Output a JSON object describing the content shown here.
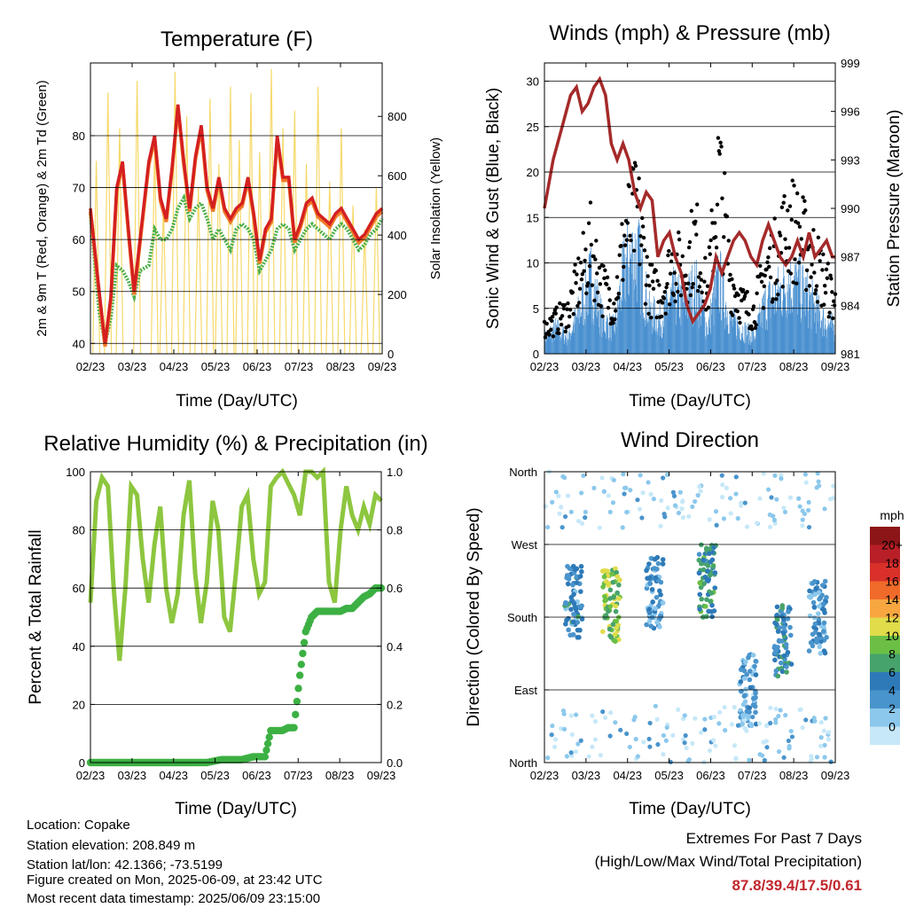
{
  "x_ticks": [
    "02/23",
    "03/23",
    "04/23",
    "05/23",
    "06/23",
    "07/23",
    "08/23",
    "09/23"
  ],
  "chart_data": [
    {
      "type": "line",
      "title": "Temperature (F)",
      "xlabel": "Time (Day/UTC)",
      "ylabel": "2m & 9m T (Red, Orange) & 2m Td (Green)",
      "y2label": "Solar Insolation (Yellow)",
      "ylim": [
        38,
        94
      ],
      "y_ticks": [
        40,
        50,
        60,
        70,
        80
      ],
      "y2lim": [
        0,
        980
      ],
      "y2_ticks": [
        0,
        200,
        400,
        600,
        800
      ],
      "colors": {
        "temp_2m": "#d42020",
        "temp_9m": "#f07a28",
        "dewpoint": "#4caf4a",
        "solar": "#f6d96a"
      },
      "series": [
        {
          "name": "2m T",
          "x": [
            0,
            3,
            5,
            7,
            9,
            11,
            13,
            15,
            17,
            20,
            22,
            24,
            26,
            28,
            30,
            32,
            34,
            36,
            38,
            40,
            42,
            44,
            46,
            48,
            50,
            52,
            54,
            56,
            58,
            60,
            62,
            64,
            66,
            68,
            70,
            72,
            74,
            76,
            78,
            80,
            82,
            84,
            86,
            88,
            90,
            92,
            94,
            96,
            98,
            100
          ],
          "values": [
            66,
            50,
            40,
            49,
            70,
            75,
            62,
            50,
            60,
            75,
            80,
            68,
            64,
            74,
            86,
            75,
            66,
            76,
            82,
            70,
            66,
            72,
            66,
            64,
            66,
            67,
            72,
            65,
            56,
            62,
            64,
            80,
            72,
            72,
            60,
            63,
            67,
            68,
            65,
            64,
            63,
            65,
            66,
            64,
            62,
            60,
            61,
            63,
            65,
            66
          ]
        },
        {
          "name": "Td",
          "x": [
            0,
            3,
            5,
            7,
            9,
            11,
            13,
            15,
            17,
            20,
            22,
            24,
            26,
            28,
            30,
            32,
            34,
            36,
            38,
            40,
            42,
            44,
            46,
            48,
            50,
            52,
            54,
            56,
            58,
            60,
            62,
            64,
            66,
            68,
            70,
            72,
            74,
            76,
            78,
            80,
            82,
            84,
            86,
            88,
            90,
            92,
            94,
            96,
            98,
            100
          ],
          "values": [
            65,
            46,
            40,
            45,
            55,
            54,
            52,
            49,
            54,
            55,
            62,
            60,
            60,
            62,
            66,
            68,
            64,
            66,
            67,
            64,
            60,
            62,
            60,
            58,
            62,
            63,
            62,
            60,
            54,
            56,
            58,
            62,
            63,
            62,
            58,
            60,
            62,
            63,
            62,
            61,
            60,
            62,
            63,
            62,
            60,
            58,
            59,
            61,
            62,
            64
          ]
        },
        {
          "name": "Solar",
          "x": [
            2,
            6,
            10,
            16,
            22,
            25,
            29,
            33,
            37,
            41,
            44,
            48,
            51,
            55,
            58,
            62,
            66,
            70,
            74,
            78,
            82,
            86,
            90,
            94,
            98
          ],
          "values": [
            650,
            880,
            760,
            920,
            700,
            500,
            950,
            800,
            560,
            860,
            640,
            900,
            720,
            880,
            680,
            960,
            760,
            820,
            640,
            900,
            580,
            760,
            500,
            420,
            560
          ]
        }
      ]
    },
    {
      "type": "line",
      "title": "Winds (mph) & Pressure (mb)",
      "xlabel": "Time (Day/UTC)",
      "ylabel": "Sonic Wind & Gust (Blue, Black)",
      "y2label": "Station Pressure (Maroon)",
      "ylim": [
        0,
        32
      ],
      "y_ticks": [
        0,
        5,
        10,
        15,
        20,
        25,
        30
      ],
      "y2lim": [
        981,
        999
      ],
      "y2_ticks": [
        981,
        984,
        987,
        990,
        993,
        996,
        999
      ],
      "colors": {
        "wind": "#4a90d0",
        "gust": "#000000",
        "pressure": "#a52a2a"
      },
      "series": [
        {
          "name": "Pressure",
          "x": [
            0,
            3,
            6,
            9,
            11,
            13,
            15,
            17,
            19,
            21,
            23,
            25,
            27,
            29,
            31,
            33,
            35,
            37,
            39,
            41,
            43,
            45,
            47,
            49,
            51,
            53,
            55,
            57,
            59,
            61,
            63,
            65,
            67,
            69,
            71,
            73,
            75,
            77,
            79,
            81,
            83,
            85,
            87,
            89,
            91,
            93,
            95,
            97,
            99,
            100
          ],
          "values": [
            990,
            993,
            995,
            997,
            997.5,
            996,
            996.5,
            997.5,
            998,
            997,
            994,
            993,
            994,
            993,
            991,
            990,
            991,
            990.5,
            987,
            988,
            988.5,
            987,
            986,
            984,
            983,
            983.5,
            984,
            985,
            987,
            986,
            987,
            988,
            988.5,
            988,
            987,
            986.5,
            988,
            989,
            988,
            987,
            986.5,
            987,
            988,
            987,
            988.5,
            987,
            987.5,
            988,
            987,
            987
          ]
        },
        {
          "name": "Wind",
          "x": [
            0,
            4,
            8,
            12,
            16,
            20,
            24,
            28,
            32,
            36,
            40,
            44,
            48,
            52,
            56,
            60,
            64,
            68,
            72,
            76,
            80,
            84,
            88,
            92,
            96,
            100
          ],
          "values": [
            2,
            3,
            2,
            5,
            9,
            4,
            3,
            11,
            12,
            5,
            4,
            7,
            6,
            8,
            3,
            9,
            4,
            3,
            2,
            6,
            7,
            9,
            8,
            6,
            4,
            3
          ]
        },
        {
          "name": "Gust",
          "x": [
            0,
            4,
            8,
            12,
            16,
            20,
            24,
            28,
            32,
            36,
            40,
            44,
            48,
            52,
            56,
            60,
            64,
            68,
            72,
            76,
            80,
            84,
            88,
            92,
            96,
            100
          ],
          "values": [
            3,
            4,
            5,
            9,
            13,
            8,
            6,
            15,
            17,
            8,
            7,
            11,
            10,
            14,
            7,
            22,
            9,
            6,
            5,
            10,
            12,
            16,
            14,
            12,
            9,
            6
          ]
        }
      ]
    },
    {
      "type": "line",
      "title": "Relative Humidity (%) & Precipitation (in)",
      "xlabel": "Time (Day/UTC)",
      "ylabel": "Percent & Total Rainfall",
      "ylim": [
        0,
        100
      ],
      "y_ticks": [
        0,
        20,
        40,
        60,
        80,
        100
      ],
      "y2lim": [
        0.0,
        1.0
      ],
      "y2_ticks": [
        "0.0",
        "0.2",
        "0.4",
        "0.6",
        "0.8",
        "1.0"
      ],
      "colors": {
        "humidity": "#8dc63f",
        "precipitation": "#3cb043"
      },
      "series": [
        {
          "name": "RH",
          "x": [
            0,
            2,
            4,
            6,
            8,
            10,
            12,
            14,
            16,
            18,
            20,
            22,
            24,
            26,
            28,
            30,
            32,
            34,
            36,
            38,
            40,
            42,
            44,
            46,
            48,
            50,
            52,
            54,
            56,
            58,
            60,
            62,
            64,
            66,
            68,
            70,
            72,
            74,
            76,
            78,
            80,
            82,
            84,
            86,
            88,
            90,
            92,
            94,
            96,
            98,
            100
          ],
          "values": [
            55,
            90,
            98,
            95,
            60,
            35,
            60,
            95,
            92,
            70,
            55,
            75,
            88,
            60,
            48,
            58,
            85,
            97,
            65,
            48,
            62,
            90,
            80,
            50,
            45,
            65,
            88,
            92,
            70,
            58,
            62,
            95,
            98,
            100,
            96,
            92,
            85,
            100,
            100,
            98,
            100,
            62,
            55,
            80,
            95,
            85,
            80,
            88,
            82,
            92,
            90
          ]
        },
        {
          "name": "Precip",
          "x": [
            0,
            10,
            20,
            30,
            40,
            45,
            50,
            52,
            56,
            60,
            62,
            66,
            68,
            70,
            72,
            74,
            76,
            78,
            80,
            82,
            84,
            86,
            88,
            90,
            92,
            94,
            96,
            98,
            100
          ],
          "values": [
            0,
            0,
            0,
            0,
            0,
            0.01,
            0.01,
            0.01,
            0.02,
            0.02,
            0.11,
            0.11,
            0.12,
            0.12,
            0.3,
            0.45,
            0.5,
            0.52,
            0.52,
            0.52,
            0.52,
            0.52,
            0.53,
            0.53,
            0.55,
            0.57,
            0.58,
            0.6,
            0.6
          ]
        }
      ]
    },
    {
      "type": "scatter",
      "title": "Wind Direction",
      "xlabel": "Time (Day/UTC)",
      "ylabel": "Direction (Colored By Speed)",
      "y_ticks": [
        "North",
        "East",
        "South",
        "West",
        "North"
      ],
      "colorbar": {
        "title": "mph",
        "labels": [
          "0",
          "2",
          "4",
          "6",
          "8",
          "10",
          "12",
          "14",
          "16",
          "18",
          "20+"
        ],
        "colors": [
          "#c6e8f8",
          "#8cc8ec",
          "#4a94cc",
          "#2e7ab8",
          "#47a36c",
          "#6bbf45",
          "#e0dc4a",
          "#f7a640",
          "#f06a2a",
          "#d9302a",
          "#b81f26",
          "#8c1518"
        ]
      },
      "direction_clusters": [
        {
          "x": 10,
          "dir": 200,
          "speed": 6
        },
        {
          "x": 23,
          "dir": 195,
          "speed": 11
        },
        {
          "x": 38,
          "dir": 210,
          "speed": 5
        },
        {
          "x": 56,
          "dir": 225,
          "speed": 8
        },
        {
          "x": 70,
          "dir": 90,
          "speed": 4
        },
        {
          "x": 82,
          "dir": 150,
          "speed": 7
        },
        {
          "x": 94,
          "dir": 180,
          "speed": 5
        }
      ]
    }
  ],
  "info": {
    "location": "Location: Copake",
    "elevation": "Station elevation: 208.849 m",
    "latlon": "Station lat/lon: 42.1366; -73.5199",
    "created": "Figure created on Mon, 2025-06-09, at 23:42 UTC",
    "timestamp": "Most recent data timestamp: 2025/06/09 23:15:00"
  },
  "extremes": {
    "title": "Extremes For Past 7 Days",
    "subtitle": "(High/Low/Max Wind/Total Precipitation)",
    "values": "87.8/39.4/17.5/0.61"
  }
}
